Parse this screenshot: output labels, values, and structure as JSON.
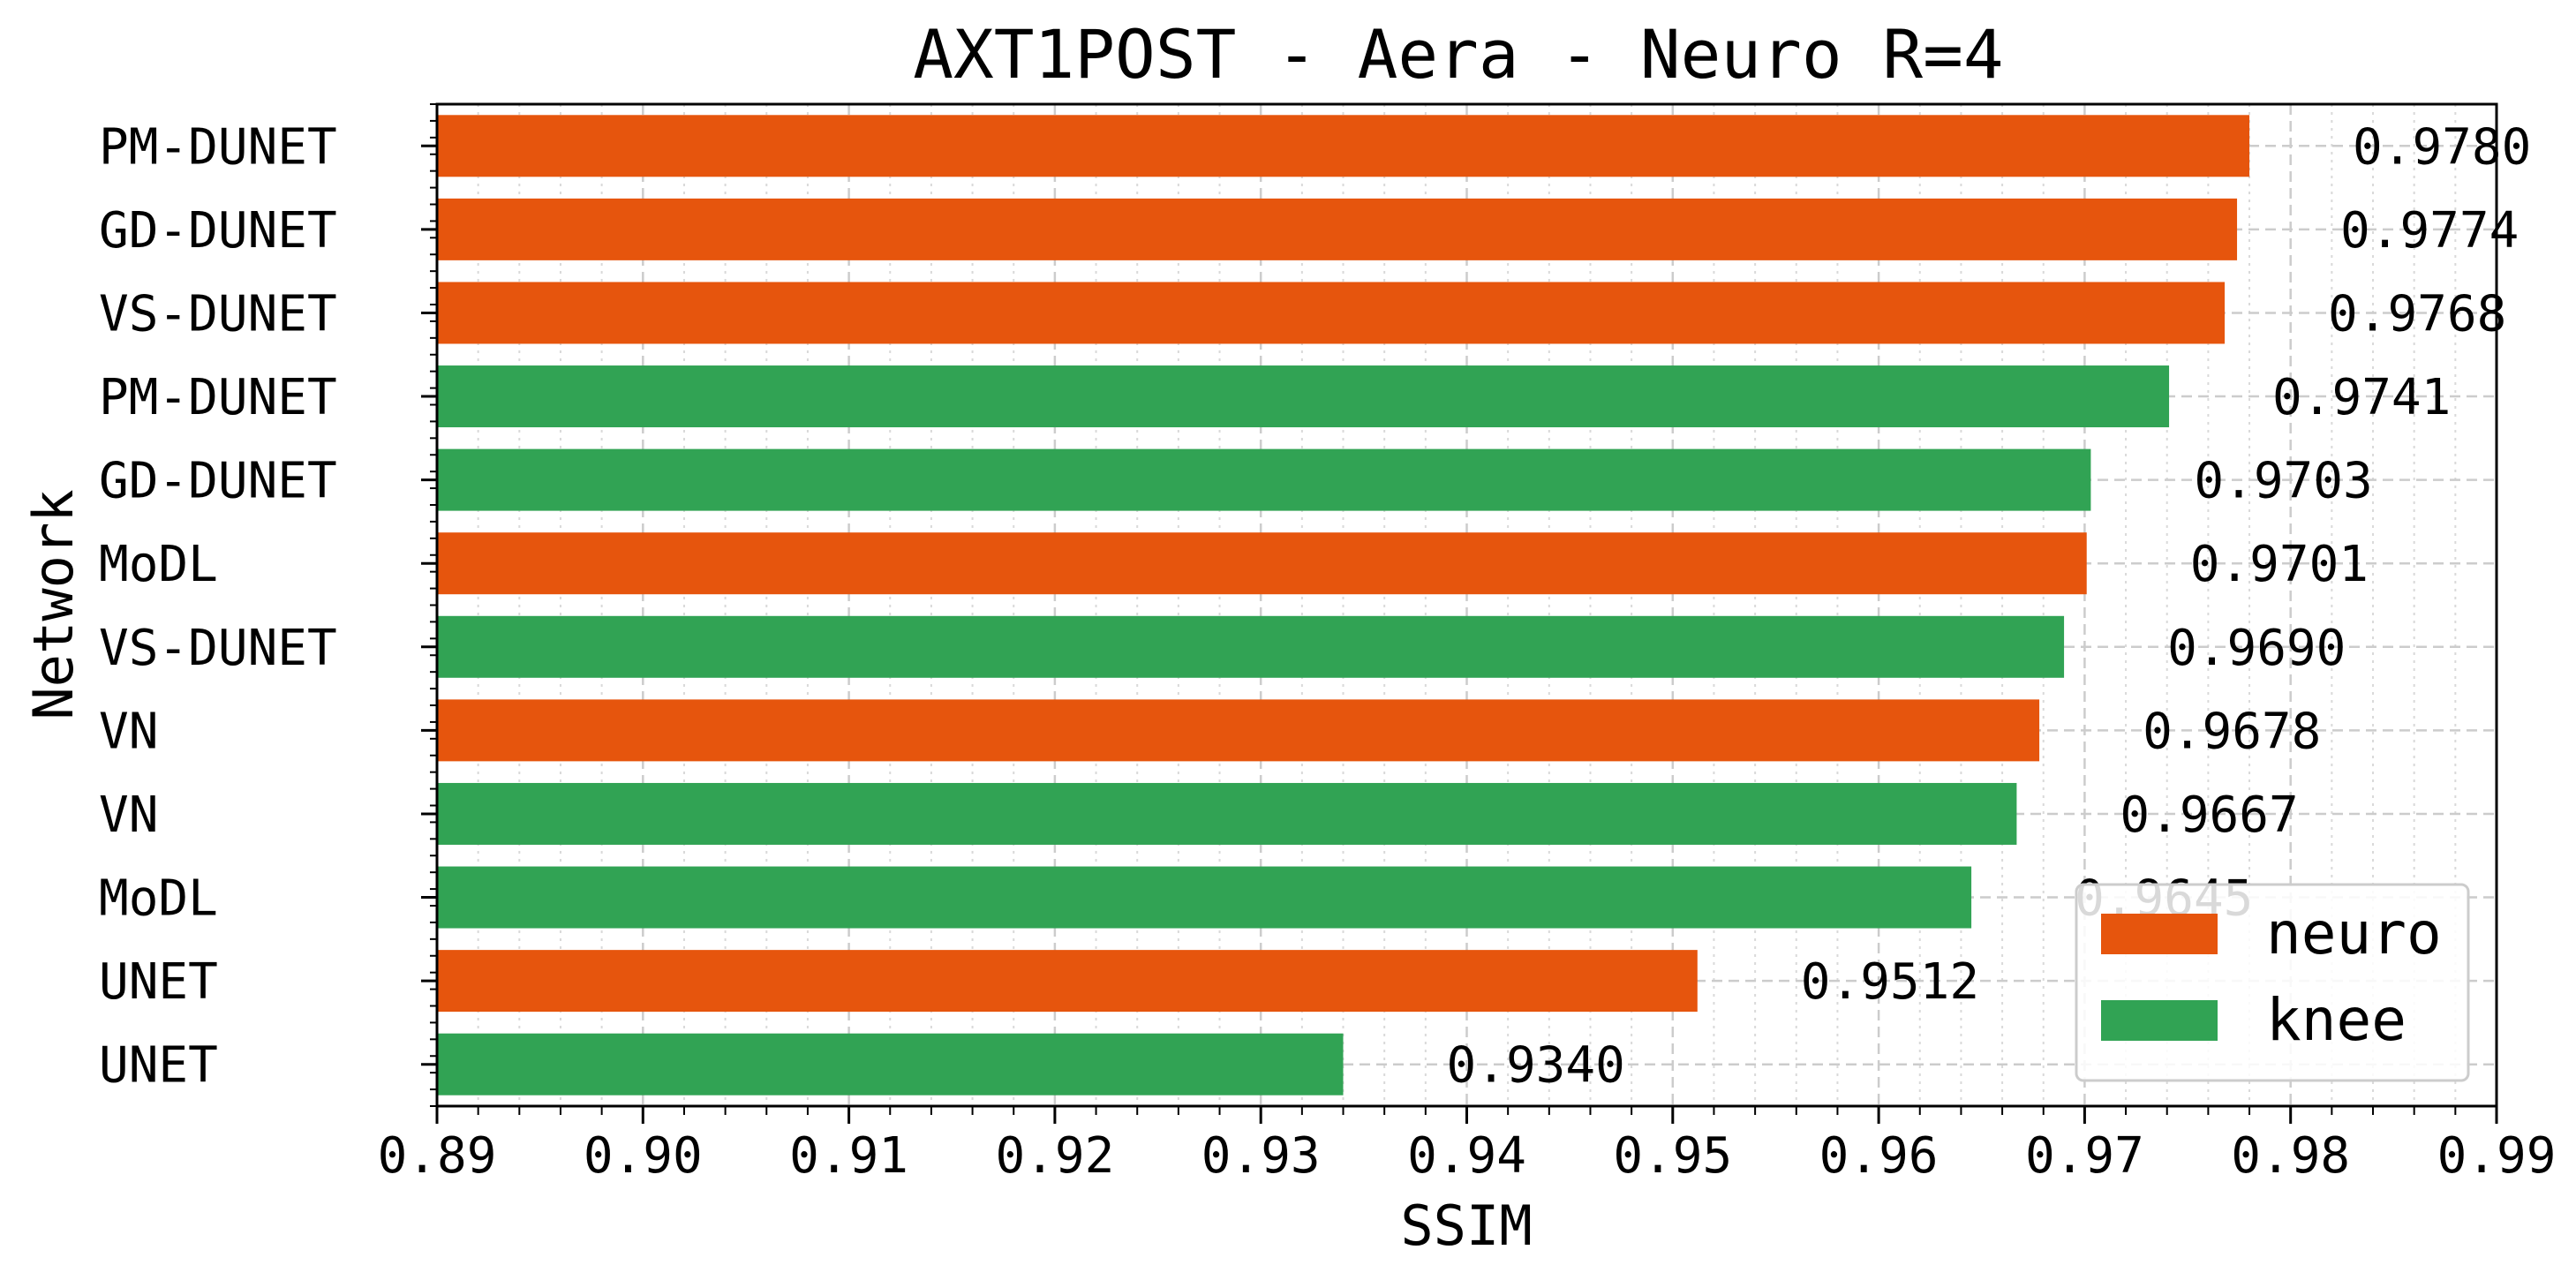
{
  "chart_data": {
    "type": "bar",
    "orientation": "horizontal",
    "title": "AXT1POST - Aera - Neuro R=4",
    "xlabel": "SSIM",
    "ylabel": "Network",
    "xlim": [
      0.89,
      0.99
    ],
    "xticks": [
      "0.89",
      "0.90",
      "0.91",
      "0.92",
      "0.93",
      "0.94",
      "0.95",
      "0.96",
      "0.97",
      "0.98",
      "0.99"
    ],
    "grid": true,
    "legend_position": "bottom-right",
    "legend": [
      {
        "name": "neuro",
        "color": "#e6550d"
      },
      {
        "name": "knee",
        "color": "#31a354"
      }
    ],
    "bars": [
      {
        "label": "PM-DUNET",
        "value": 0.978,
        "value_label": "0.9780",
        "group": "neuro"
      },
      {
        "label": "GD-DUNET",
        "value": 0.9774,
        "value_label": "0.9774",
        "group": "neuro"
      },
      {
        "label": "VS-DUNET",
        "value": 0.9768,
        "value_label": "0.9768",
        "group": "neuro"
      },
      {
        "label": "PM-DUNET",
        "value": 0.9741,
        "value_label": "0.9741",
        "group": "knee"
      },
      {
        "label": "GD-DUNET",
        "value": 0.9703,
        "value_label": "0.9703",
        "group": "knee"
      },
      {
        "label": "MoDL",
        "value": 0.9701,
        "value_label": "0.9701",
        "group": "neuro"
      },
      {
        "label": "VS-DUNET",
        "value": 0.969,
        "value_label": "0.9690",
        "group": "knee"
      },
      {
        "label": "VN",
        "value": 0.9678,
        "value_label": "0.9678",
        "group": "neuro"
      },
      {
        "label": "VN",
        "value": 0.9667,
        "value_label": "0.9667",
        "group": "knee"
      },
      {
        "label": "MoDL",
        "value": 0.9645,
        "value_label": "0.9645",
        "group": "knee"
      },
      {
        "label": "UNET",
        "value": 0.9512,
        "value_label": "0.9512",
        "group": "neuro"
      },
      {
        "label": "UNET",
        "value": 0.934,
        "value_label": "0.9340",
        "group": "knee"
      }
    ]
  }
}
